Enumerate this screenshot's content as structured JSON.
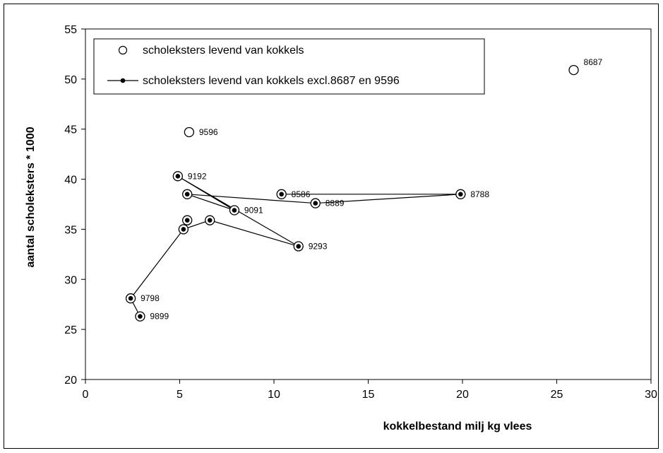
{
  "chart_data": {
    "type": "scatter",
    "xlabel": "kokkelbestand milj kg vlees",
    "ylabel": "aantal scholeksters * 1000",
    "xlim": [
      0,
      30
    ],
    "ylim": [
      20,
      55
    ],
    "x_ticks": [
      "0",
      "5",
      "10",
      "15",
      "20",
      "25",
      "30"
    ],
    "y_ticks": [
      "20",
      "25",
      "30",
      "35",
      "40",
      "45",
      "50",
      "55"
    ],
    "grid": false,
    "legend_position": "top-left",
    "series": [
      {
        "name": "scholeksters levend van kokkels",
        "marker": "open-circle",
        "connected": false,
        "points": [
          {
            "x": 10.4,
            "y": 38.5,
            "label": "8586"
          },
          {
            "x": 25.9,
            "y": 50.9,
            "label": "8687"
          },
          {
            "x": 19.9,
            "y": 38.5,
            "label": "8788"
          },
          {
            "x": 12.2,
            "y": 37.6,
            "label": "8889"
          },
          {
            "x": 5.4,
            "y": 38.5,
            "label": ""
          },
          {
            "x": 7.9,
            "y": 36.9,
            "label": "9091"
          },
          {
            "x": 4.9,
            "y": 40.3,
            "label": "9192"
          },
          {
            "x": 11.3,
            "y": 33.3,
            "label": "9293"
          },
          {
            "x": 6.6,
            "y": 35.9,
            "label": ""
          },
          {
            "x": 5.2,
            "y": 35.0,
            "label": ""
          },
          {
            "x": 5.5,
            "y": 44.7,
            "label": "9596"
          },
          {
            "x": 5.4,
            "y": 35.9,
            "label": ""
          },
          {
            "x": 2.4,
            "y": 28.1,
            "label": "9798"
          },
          {
            "x": 2.9,
            "y": 26.3,
            "label": "9899"
          }
        ]
      },
      {
        "name": "scholeksters levend van kokkels excl.8687 en 9596",
        "marker": "filled-dot",
        "connected": true,
        "points": [
          {
            "x": 10.4,
            "y": 38.5
          },
          {
            "x": 19.9,
            "y": 38.5
          },
          {
            "x": 12.2,
            "y": 37.6
          },
          {
            "x": 5.4,
            "y": 38.5
          },
          {
            "x": 7.9,
            "y": 36.9
          },
          {
            "x": 4.9,
            "y": 40.3
          },
          {
            "x": 11.3,
            "y": 33.3
          },
          {
            "x": 6.6,
            "y": 35.9
          },
          {
            "x": 5.2,
            "y": 35.0
          },
          {
            "x": 2.4,
            "y": 28.1
          },
          {
            "x": 2.9,
            "y": 26.3
          }
        ],
        "extra_points": [
          {
            "x": 5.4,
            "y": 35.9
          }
        ]
      }
    ]
  }
}
